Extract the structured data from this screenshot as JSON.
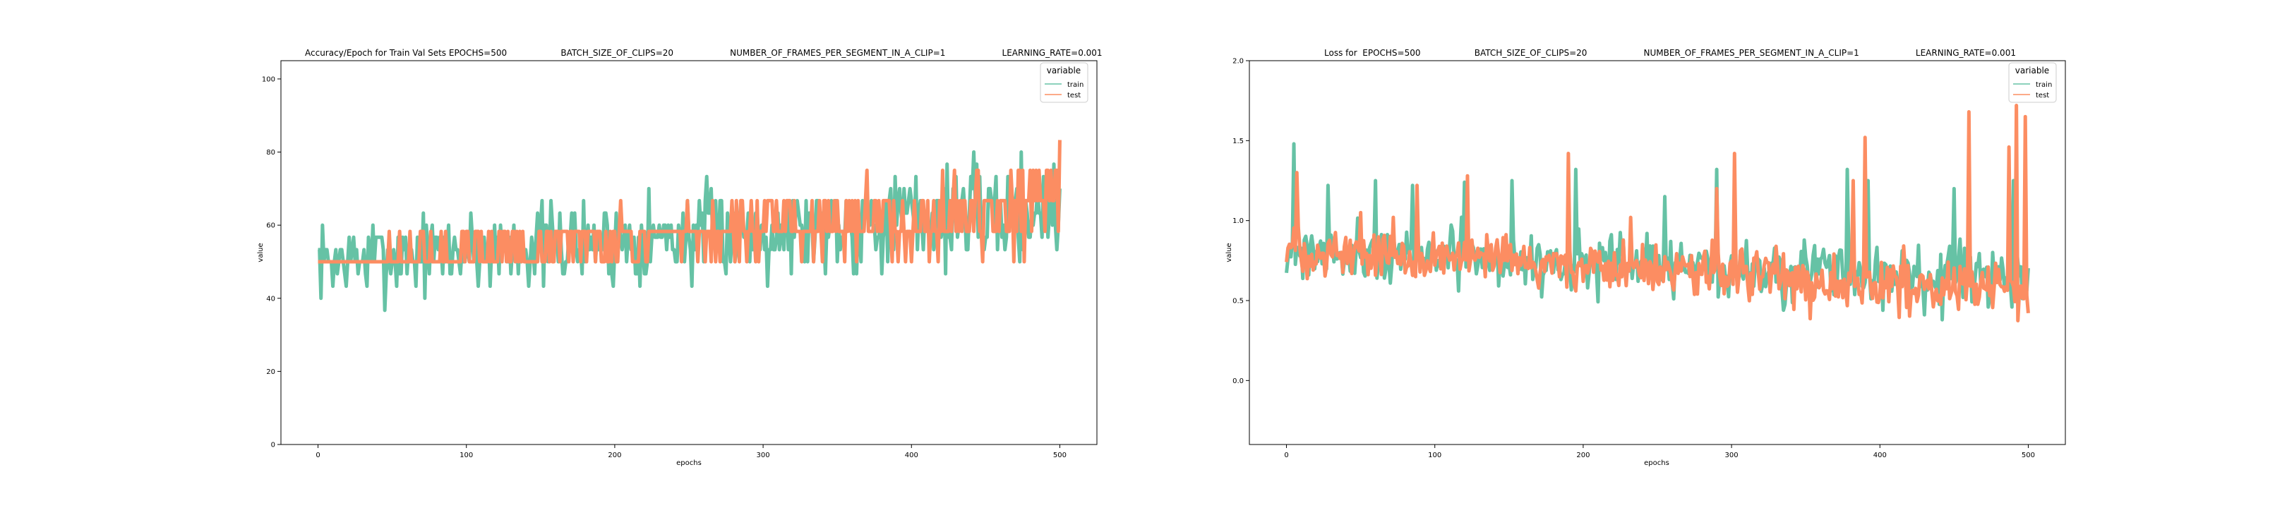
{
  "palette": {
    "train": "#66c2a5",
    "test": "#fc8d62"
  },
  "chart_data": [
    {
      "type": "line",
      "title": "Accuracy/Epoch for Train Val Sets EPOCHS=500                    BATCH_SIZE_OF_CLIPS=20                     NUMBER_OF_FRAMES_PER_SEGMENT_IN_A_CLIP=1                     LEARNING_RATE=0.001",
      "xlabel": "epochs",
      "ylabel": "value",
      "xlim": [
        -25,
        525
      ],
      "ylim": [
        0,
        105
      ],
      "xticks": [
        0,
        100,
        200,
        300,
        400,
        500
      ],
      "yticks": [
        0,
        20,
        40,
        60,
        80,
        100
      ],
      "grid": false,
      "legend": {
        "title": "variable",
        "position": "top-right",
        "entries": [
          "train",
          "test"
        ]
      },
      "series_gen": {
        "train": {
          "start": 50,
          "end": 65,
          "amp_start": 7,
          "amp_end": 10,
          "levels": [
            33.3,
            36.7,
            40,
            43.3,
            46.7,
            50,
            53.3,
            56.7,
            60,
            63.3,
            66.7,
            70,
            73.3,
            76.7,
            80,
            83.3
          ],
          "seed": 7
        },
        "test": {
          "start": 50,
          "end": 65,
          "amp_start": 1.5,
          "amp_end": 9,
          "levels": [
            33.3,
            41.7,
            50,
            58.3,
            66.7,
            75,
            83.3
          ],
          "seed": 13
        }
      }
    },
    {
      "type": "line",
      "title": "Loss for  EPOCHS=500                    BATCH_SIZE_OF_CLIPS=20                     NUMBER_OF_FRAMES_PER_SEGMENT_IN_A_CLIP=1                     LEARNING_RATE=0.001",
      "xlabel": "epochs",
      "ylabel": "value",
      "xlim": [
        -25,
        525
      ],
      "ylim": [
        -0.4,
        2.0
      ],
      "xticks": [
        0,
        100,
        200,
        300,
        400,
        500
      ],
      "yticks": [
        0.0,
        0.5,
        1.0,
        1.5,
        2.0
      ],
      "ytick_labels": [
        "0.0",
        "0.5",
        "1.0",
        "1.5",
        "2.0"
      ],
      "grid": false,
      "legend": {
        "title": "variable",
        "position": "top-right",
        "entries": [
          "train",
          "test"
        ]
      },
      "series_gen": {
        "train": {
          "start": 0.82,
          "end": 0.62,
          "amp_start": 0.12,
          "amp_end": 0.14,
          "spikes": [
            [
              5,
              1.48
            ],
            [
              28,
              1.22
            ],
            [
              60,
              1.25
            ],
            [
              85,
              1.22
            ],
            [
              120,
              1.24
            ],
            [
              152,
              1.25
            ],
            [
              195,
              1.32
            ],
            [
              255,
              1.15
            ],
            [
              290,
              1.32
            ],
            [
              378,
              1.32
            ],
            [
              392,
              1.25
            ],
            [
              450,
              1.2
            ],
            [
              490,
              1.25
            ]
          ],
          "seed": 21
        },
        "test": {
          "start": 0.82,
          "end": 0.56,
          "amp_start": 0.1,
          "amp_end": 0.13,
          "spikes": [
            [
              7,
              1.3
            ],
            [
              50,
              1.05
            ],
            [
              72,
              1.02
            ],
            [
              88,
              1.22
            ],
            [
              122,
              1.28
            ],
            [
              190,
              1.42
            ],
            [
              232,
              1.02
            ],
            [
              290,
              1.2
            ],
            [
              302,
              1.42
            ],
            [
              382,
              1.25
            ],
            [
              390,
              1.52
            ],
            [
              460,
              1.68
            ],
            [
              487,
              1.46
            ],
            [
              492,
              1.72
            ],
            [
              498,
              1.65
            ]
          ],
          "seed": 33
        }
      }
    }
  ]
}
